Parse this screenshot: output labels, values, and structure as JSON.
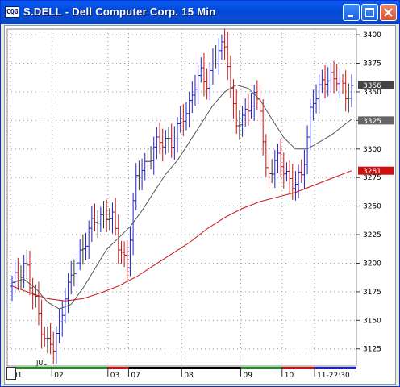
{
  "window": {
    "app_icon_label": "CQG",
    "title": "S.DELL - Dell Computer Corp. 15 Min",
    "minimize_icon": "minimize-icon",
    "maximize_icon": "maximize-icon",
    "close_icon": "close-icon"
  },
  "colors": {
    "up_bar": "#2222cc",
    "down_bar": "#cc1111",
    "neutral_bar": "#333333",
    "fast_ma": "#555555",
    "slow_ma": "#cc1111",
    "current_price_tag": "#444444",
    "fast_ma_tag": "#666666",
    "slow_ma_tag": "#cc1111"
  },
  "chart_data": {
    "type": "bar",
    "chart_style": "OHLC price bars with two moving averages",
    "ylim": [
      3110,
      3405
    ],
    "y_ticks": [
      "3400",
      "3375",
      "3350",
      "3325",
      "3300",
      "3275",
      "3250",
      "3225",
      "3200",
      "3175",
      "3150",
      "3125"
    ],
    "grid": true,
    "month_label": "JUL",
    "x_tick_labels": [
      "01",
      "02",
      "03",
      "07",
      "08",
      "09",
      "10",
      "11-22:30"
    ],
    "session_colors": [
      "#228822",
      "#228822",
      "#cc1111",
      "#000000",
      "#000000",
      "#228822",
      "#cc1111",
      "#2222cc"
    ],
    "price_tags": {
      "current": "3356",
      "fast_ma": "3325",
      "slow_ma": "3281"
    },
    "price_path": [
      [
        0,
        3180
      ],
      [
        2,
        3190
      ],
      [
        4,
        3200
      ],
      [
        5,
        3195
      ],
      [
        6,
        3180
      ],
      [
        8,
        3165
      ],
      [
        10,
        3145
      ],
      [
        12,
        3130
      ],
      [
        14,
        3125
      ],
      [
        15,
        3135
      ],
      [
        16,
        3145
      ],
      [
        17,
        3160
      ],
      [
        18,
        3175
      ],
      [
        20,
        3185
      ],
      [
        22,
        3200
      ],
      [
        24,
        3215
      ],
      [
        26,
        3230
      ],
      [
        28,
        3235
      ],
      [
        30,
        3240
      ],
      [
        32,
        3245
      ],
      [
        34,
        3238
      ],
      [
        36,
        3215
      ],
      [
        38,
        3205
      ],
      [
        39,
        3200
      ],
      [
        40,
        3225
      ],
      [
        41,
        3250
      ],
      [
        42,
        3270
      ],
      [
        44,
        3285
      ],
      [
        46,
        3290
      ],
      [
        48,
        3300
      ],
      [
        50,
        3305
      ],
      [
        52,
        3310
      ],
      [
        54,
        3305
      ],
      [
        56,
        3315
      ],
      [
        58,
        3330
      ],
      [
        60,
        3340
      ],
      [
        62,
        3355
      ],
      [
        64,
        3365
      ],
      [
        66,
        3360
      ],
      [
        68,
        3375
      ],
      [
        70,
        3385
      ],
      [
        72,
        3390
      ],
      [
        73,
        3380
      ],
      [
        74,
        3355
      ],
      [
        75,
        3335
      ],
      [
        76,
        3320
      ],
      [
        78,
        3325
      ],
      [
        80,
        3340
      ],
      [
        82,
        3345
      ],
      [
        84,
        3335
      ],
      [
        85,
        3305
      ],
      [
        86,
        3280
      ],
      [
        88,
        3285
      ],
      [
        90,
        3290
      ],
      [
        92,
        3280
      ],
      [
        94,
        3275
      ],
      [
        96,
        3270
      ],
      [
        98,
        3275
      ],
      [
        99,
        3290
      ],
      [
        100,
        3310
      ],
      [
        101,
        3335
      ],
      [
        102,
        3345
      ],
      [
        104,
        3350
      ],
      [
        106,
        3360
      ],
      [
        108,
        3365
      ],
      [
        110,
        3362
      ],
      [
        112,
        3350
      ],
      [
        113,
        3345
      ],
      [
        115,
        3355
      ]
    ],
    "fast_ma": [
      [
        0,
        3183
      ],
      [
        4,
        3186
      ],
      [
        8,
        3178
      ],
      [
        12,
        3166
      ],
      [
        16,
        3160
      ],
      [
        20,
        3164
      ],
      [
        24,
        3178
      ],
      [
        28,
        3195
      ],
      [
        32,
        3212
      ],
      [
        36,
        3222
      ],
      [
        40,
        3232
      ],
      [
        44,
        3246
      ],
      [
        48,
        3262
      ],
      [
        52,
        3278
      ],
      [
        56,
        3290
      ],
      [
        60,
        3306
      ],
      [
        64,
        3322
      ],
      [
        68,
        3338
      ],
      [
        72,
        3350
      ],
      [
        76,
        3356
      ],
      [
        80,
        3353
      ],
      [
        84,
        3343
      ],
      [
        88,
        3326
      ],
      [
        92,
        3310
      ],
      [
        96,
        3300
      ],
      [
        100,
        3300
      ],
      [
        104,
        3306
      ],
      [
        108,
        3312
      ],
      [
        112,
        3320
      ],
      [
        115,
        3326
      ]
    ],
    "slow_ma": [
      [
        0,
        3180
      ],
      [
        6,
        3174
      ],
      [
        12,
        3169
      ],
      [
        18,
        3167
      ],
      [
        24,
        3169
      ],
      [
        30,
        3174
      ],
      [
        36,
        3180
      ],
      [
        42,
        3188
      ],
      [
        48,
        3198
      ],
      [
        54,
        3208
      ],
      [
        60,
        3218
      ],
      [
        66,
        3230
      ],
      [
        72,
        3240
      ],
      [
        78,
        3248
      ],
      [
        84,
        3254
      ],
      [
        90,
        3258
      ],
      [
        96,
        3262
      ],
      [
        102,
        3268
      ],
      [
        108,
        3274
      ],
      [
        115,
        3281
      ]
    ],
    "bar_count": 116
  }
}
